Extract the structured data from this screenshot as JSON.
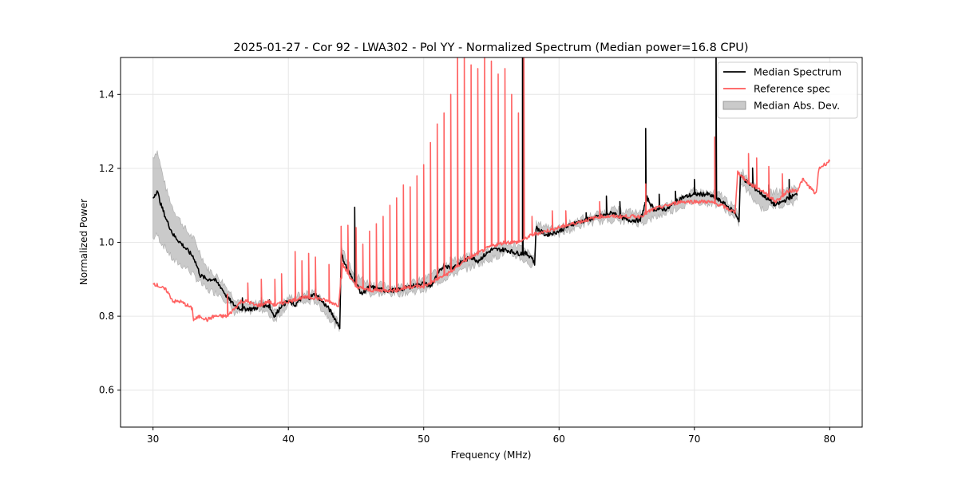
{
  "chart_data": {
    "type": "line",
    "title": "2025-01-27 - Cor 92 - LWA302 - Pol YY - Normalized Spectrum (Median power=16.8 CPU)",
    "xlabel": "Frequency (MHz)",
    "ylabel": "Normalized Power",
    "xlim": [
      27.6,
      82.4
    ],
    "ylim": [
      0.5,
      1.5
    ],
    "xticks": [
      30,
      40,
      50,
      60,
      70,
      80
    ],
    "yticks": [
      0.6,
      0.8,
      1.0,
      1.2,
      1.4
    ],
    "grid": true,
    "legend_position": "top-right",
    "colors": {
      "median": "#000000",
      "reference": "#ff5a5a",
      "mad": "#9e9e9e"
    },
    "series": [
      {
        "name": "Median Spectrum",
        "x": [
          30.0,
          30.3,
          30.6,
          31.0,
          31.5,
          32.0,
          32.5,
          33.0,
          33.5,
          34.0,
          34.5,
          35.0,
          35.5,
          36.0,
          36.5,
          37.0,
          37.5,
          38.0,
          38.5,
          39.0,
          39.5,
          40.0,
          40.5,
          41.0,
          41.5,
          42.0,
          42.5,
          43.0,
          43.5,
          43.8,
          43.9,
          44.2,
          44.6,
          45.0,
          45.4,
          46.0,
          47.0,
          48.0,
          49.0,
          50.0,
          50.5,
          51.0,
          51.5,
          52.0,
          52.5,
          53.0,
          53.5,
          54.0,
          55.0,
          56.0,
          57.0,
          57.5,
          58.0,
          58.2,
          58.3,
          59.0,
          60.0,
          61.0,
          62.0,
          63.0,
          64.0,
          65.0,
          66.0,
          66.5,
          67.0,
          68.0,
          69.0,
          70.0,
          71.0,
          71.5,
          72.0,
          73.0,
          73.3,
          73.4,
          74.0,
          75.0,
          76.0,
          77.0,
          77.6
        ],
        "values": [
          1.12,
          1.14,
          1.1,
          1.06,
          1.02,
          1.0,
          0.98,
          0.96,
          0.91,
          0.9,
          0.9,
          0.88,
          0.85,
          0.83,
          0.82,
          0.82,
          0.82,
          0.83,
          0.83,
          0.8,
          0.83,
          0.84,
          0.83,
          0.85,
          0.85,
          0.86,
          0.84,
          0.82,
          0.79,
          0.77,
          0.97,
          0.94,
          0.91,
          0.89,
          0.86,
          0.88,
          0.87,
          0.87,
          0.88,
          0.89,
          0.88,
          0.91,
          0.94,
          0.93,
          0.94,
          0.95,
          0.96,
          0.95,
          0.98,
          0.98,
          0.97,
          0.97,
          0.96,
          0.94,
          1.04,
          1.02,
          1.03,
          1.05,
          1.06,
          1.07,
          1.08,
          1.06,
          1.06,
          1.12,
          1.09,
          1.09,
          1.12,
          1.13,
          1.13,
          1.12,
          1.11,
          1.08,
          1.06,
          1.18,
          1.16,
          1.13,
          1.1,
          1.12,
          1.13
        ],
        "spikes": [
          [
            36.6,
            0.03
          ],
          [
            38.0,
            0.02
          ],
          [
            38.6,
            0.02
          ],
          [
            44.9,
            0.2
          ],
          [
            52.0,
            0.03
          ],
          [
            57.3,
            0.7
          ],
          [
            62.0,
            0.02
          ],
          [
            63.5,
            0.05
          ],
          [
            64.5,
            0.04
          ],
          [
            66.4,
            0.2
          ],
          [
            67.4,
            0.04
          ],
          [
            68.6,
            0.03
          ],
          [
            70.0,
            0.04
          ],
          [
            71.6,
            0.45
          ],
          [
            74.3,
            0.05
          ],
          [
            75.5,
            0.04
          ],
          [
            77.0,
            0.05
          ]
        ]
      },
      {
        "name": "Reference spec",
        "x": [
          30.0,
          30.5,
          31.0,
          31.5,
          32.0,
          32.5,
          32.9,
          33.0,
          33.5,
          34.0,
          34.5,
          35.0,
          35.5,
          36.0,
          36.5,
          37.0,
          37.5,
          38.0,
          38.5,
          39.0,
          40.0,
          41.0,
          42.0,
          43.0,
          43.7,
          44.0,
          45.0,
          46.0,
          47.0,
          48.0,
          49.0,
          50.0,
          51.0,
          52.0,
          53.0,
          54.0,
          55.0,
          56.0,
          57.0,
          58.0,
          59.0,
          60.0,
          61.0,
          62.0,
          63.0,
          64.0,
          65.0,
          66.0,
          67.0,
          68.0,
          69.0,
          70.0,
          71.0,
          72.0,
          73.0,
          73.2,
          74.0,
          75.0,
          76.0,
          77.0,
          77.6,
          78.0,
          79.0,
          79.2,
          80.0
        ],
        "values": [
          0.89,
          0.88,
          0.87,
          0.84,
          0.84,
          0.83,
          0.82,
          0.79,
          0.8,
          0.79,
          0.8,
          0.8,
          0.8,
          0.82,
          0.84,
          0.84,
          0.83,
          0.83,
          0.84,
          0.83,
          0.84,
          0.85,
          0.85,
          0.84,
          0.83,
          0.94,
          0.88,
          0.87,
          0.87,
          0.87,
          0.88,
          0.88,
          0.9,
          0.92,
          0.95,
          0.97,
          0.99,
          1.0,
          1.0,
          1.02,
          1.03,
          1.04,
          1.05,
          1.06,
          1.07,
          1.07,
          1.07,
          1.07,
          1.09,
          1.1,
          1.11,
          1.11,
          1.11,
          1.1,
          1.08,
          1.19,
          1.16,
          1.14,
          1.11,
          1.14,
          1.14,
          1.17,
          1.13,
          1.2,
          1.22
        ],
        "spikes": [
          [
            35.5,
            0.06
          ],
          [
            37.0,
            0.05
          ],
          [
            38.0,
            0.07
          ],
          [
            39.0,
            0.07
          ],
          [
            39.5,
            0.08
          ],
          [
            40.5,
            0.13
          ],
          [
            41.0,
            0.1
          ],
          [
            41.5,
            0.12
          ],
          [
            42.0,
            0.11
          ],
          [
            43.0,
            0.1
          ],
          [
            43.9,
            0.14
          ],
          [
            44.4,
            0.13
          ],
          [
            45.0,
            0.16
          ],
          [
            45.5,
            0.12
          ],
          [
            46.0,
            0.16
          ],
          [
            46.5,
            0.18
          ],
          [
            47.0,
            0.2
          ],
          [
            47.5,
            0.23
          ],
          [
            48.0,
            0.25
          ],
          [
            48.5,
            0.28
          ],
          [
            49.0,
            0.27
          ],
          [
            49.5,
            0.3
          ],
          [
            50.0,
            0.33
          ],
          [
            50.5,
            0.38
          ],
          [
            51.0,
            0.42
          ],
          [
            51.5,
            0.44
          ],
          [
            52.0,
            0.48
          ],
          [
            52.5,
            0.6
          ],
          [
            53.0,
            0.55
          ],
          [
            53.5,
            0.52
          ],
          [
            54.0,
            0.5
          ],
          [
            54.5,
            0.55
          ],
          [
            55.0,
            0.5
          ],
          [
            55.5,
            0.46
          ],
          [
            56.0,
            0.47
          ],
          [
            56.5,
            0.4
          ],
          [
            57.0,
            0.35
          ],
          [
            57.4,
            0.55
          ],
          [
            58.0,
            0.05
          ],
          [
            59.5,
            0.05
          ],
          [
            60.5,
            0.04
          ],
          [
            63.0,
            0.04
          ],
          [
            66.4,
            0.08
          ],
          [
            71.5,
            0.18
          ],
          [
            74.0,
            0.08
          ],
          [
            74.6,
            0.08
          ],
          [
            75.5,
            0.08
          ],
          [
            76.5,
            0.06
          ]
        ]
      },
      {
        "name": "Median Abs. Dev.",
        "x": [
          30.0,
          30.3,
          30.6,
          31.0,
          31.5,
          32.0,
          32.5,
          33.0,
          34.0,
          35.0,
          36.0,
          37.0,
          38.0,
          39.0,
          40.0,
          42.0,
          43.8,
          43.9,
          45.0,
          46.0,
          48.0,
          50.0,
          52.0,
          54.0,
          56.0,
          57.0,
          58.2,
          58.3,
          60.0,
          62.0,
          64.0,
          66.0,
          68.0,
          70.0,
          72.0,
          73.3,
          73.4,
          75.0,
          77.6
        ],
        "lower": [
          1.01,
          1.02,
          1.0,
          0.98,
          0.95,
          0.94,
          0.93,
          0.91,
          0.87,
          0.86,
          0.81,
          0.81,
          0.82,
          0.79,
          0.83,
          0.84,
          0.76,
          0.96,
          0.88,
          0.86,
          0.86,
          0.87,
          0.91,
          0.94,
          0.97,
          0.96,
          0.93,
          1.03,
          1.02,
          1.05,
          1.06,
          1.05,
          1.08,
          1.11,
          1.1,
          1.05,
          1.16,
          1.09,
          1.11
        ],
        "upper": [
          1.23,
          1.25,
          1.2,
          1.14,
          1.09,
          1.06,
          1.03,
          1.01,
          0.93,
          0.9,
          0.85,
          0.83,
          0.84,
          0.82,
          0.85,
          0.87,
          0.78,
          0.99,
          0.91,
          0.89,
          0.88,
          0.9,
          0.95,
          0.97,
          1.0,
          0.99,
          0.96,
          1.05,
          1.04,
          1.07,
          1.09,
          1.08,
          1.1,
          1.14,
          1.13,
          1.08,
          1.2,
          1.13,
          1.15
        ]
      }
    ]
  }
}
